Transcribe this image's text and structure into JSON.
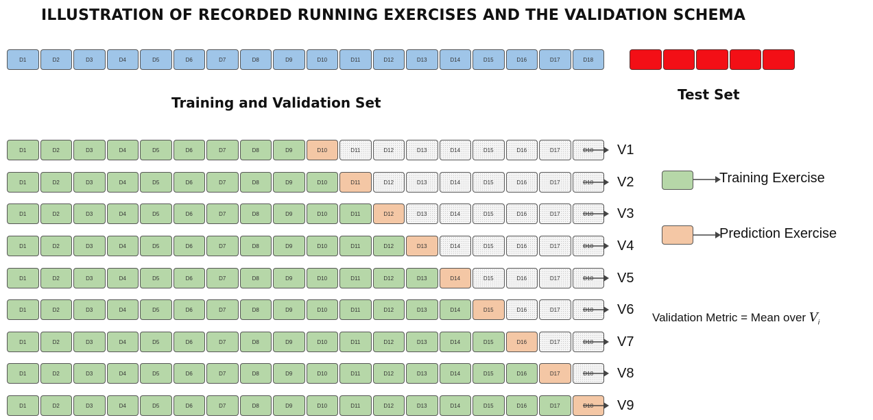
{
  "title": "ILLUSTRATION OF RECORDED RUNNING EXERCISES AND THE VALIDATION SCHEMA",
  "top_sequence": [
    "D1",
    "D2",
    "D3",
    "D4",
    "D5",
    "D6",
    "D7",
    "D8",
    "D9",
    "D10",
    "D11",
    "D12",
    "D13",
    "D14",
    "D15",
    "D16",
    "D17",
    "D18"
  ],
  "test_set": {
    "label": "Test Set",
    "count": 5,
    "color": "#f30f16"
  },
  "training_validation_label": "Training and Validation Set",
  "folds": [
    {
      "label": "V1",
      "prediction_index": 9
    },
    {
      "label": "V2",
      "prediction_index": 10
    },
    {
      "label": "V3",
      "prediction_index": 11
    },
    {
      "label": "V4",
      "prediction_index": 12
    },
    {
      "label": "V5",
      "prediction_index": 13
    },
    {
      "label": "V6",
      "prediction_index": 14
    },
    {
      "label": "V7",
      "prediction_index": 15
    },
    {
      "label": "V8",
      "prediction_index": 16
    },
    {
      "label": "V9",
      "prediction_index": 17
    }
  ],
  "legend": {
    "training": {
      "label": "Training Exercise",
      "color": "#b6d7a8"
    },
    "prediction": {
      "label": "Prediction Exercise",
      "color": "#f4c7a5"
    }
  },
  "metric": {
    "prefix": "Validation Metric = Mean over ",
    "symbol": "V",
    "subscript": "i"
  },
  "colors": {
    "sequence": "#9fc5e8",
    "training": "#b6d7a8",
    "prediction": "#f4c7a5",
    "future": "#f5f5f5",
    "test": "#f30f16"
  }
}
